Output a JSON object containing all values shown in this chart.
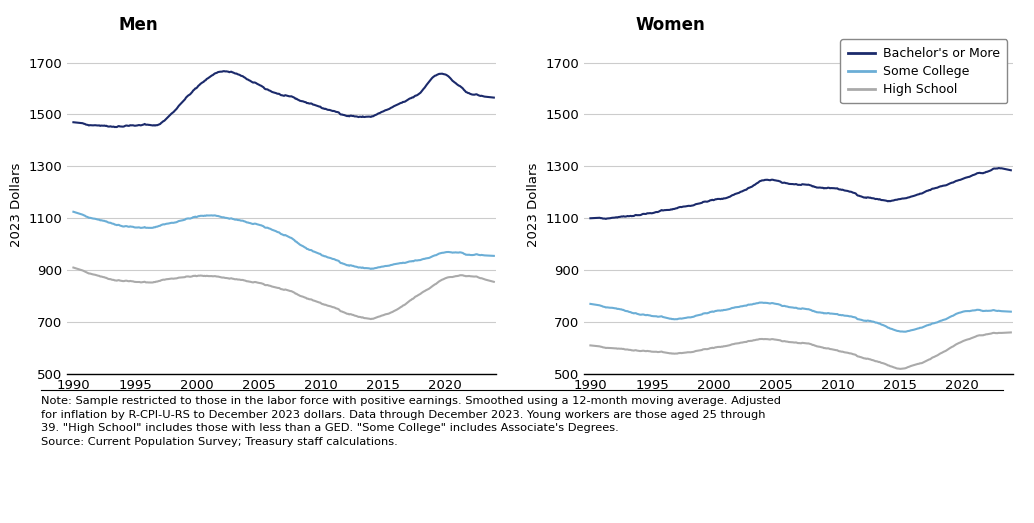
{
  "title_men": "Men",
  "title_women": "Women",
  "ylabel": "2023 Dollars",
  "ylim": [
    500,
    1800
  ],
  "yticks": [
    500,
    700,
    900,
    1100,
    1300,
    1500,
    1700
  ],
  "xlim": [
    1989.5,
    2024.2
  ],
  "xticks": [
    1990,
    1995,
    2000,
    2005,
    2010,
    2015,
    2020
  ],
  "color_bachelor": "#1b2a6b",
  "color_college": "#6baed6",
  "color_highschool": "#aaaaaa",
  "legend_labels": [
    "Bachelor's or More",
    "Some College",
    "High School"
  ],
  "note_line1": "Note: Sample restricted to those in the labor force with positive earnings. Smoothed using a 12-month moving average. Adjusted",
  "note_line2": "for inflation by R-CPI-U-RS to December 2023 dollars. Data through December 2023. Young workers are those aged 25 through",
  "note_line3": "39. \"High School\" includes those with less than a GED. \"Some College\" includes Associate's Degrees.",
  "note_line4": "Source: Current Population Survey; Treasury staff calculations.",
  "background_color": "#ffffff",
  "grid_color": "#cccccc",
  "line_width": 1.5
}
